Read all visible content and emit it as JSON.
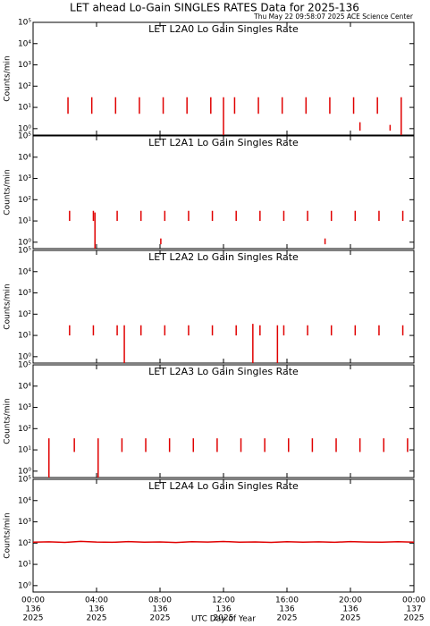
{
  "title": "LET ahead Lo-Gain SINGLES RATES Data for 2025-136",
  "subtitle": "Thu May 22 09:58:07 2025 ACE Science Center",
  "xlabel": "UTC Day of Year",
  "chart_data": [
    {
      "type": "range",
      "title": "LET L2A0 Lo Gain Singles Rate",
      "ylabel": "Counts/min",
      "title_color": "#0000d0",
      "color": "#e00000",
      "log_y": true,
      "x": [
        2.2,
        3.7,
        5.2,
        6.7,
        8.2,
        9.7,
        11.2,
        12.0,
        12.7,
        14.2,
        15.7,
        17.2,
        18.7,
        20.2,
        20.6,
        21.7,
        22.5,
        23.2
      ],
      "low": [
        5,
        5,
        5,
        5,
        5,
        5,
        5,
        0.5,
        5,
        5,
        5,
        5,
        5,
        5,
        0.8,
        5,
        0.8,
        0.5
      ],
      "high": [
        30,
        30,
        30,
        30,
        30,
        30,
        30,
        30,
        30,
        30,
        30,
        30,
        30,
        30,
        2,
        30,
        1.5,
        30
      ],
      "xlim": [
        0,
        24
      ],
      "xticks": [
        0,
        4,
        8,
        12,
        16,
        20,
        24
      ],
      "ylim": [
        0.5,
        100000
      ],
      "yticks": [
        {
          "value": 1,
          "label": "10⁰"
        },
        {
          "value": 10,
          "label": "10¹"
        },
        {
          "value": 100,
          "label": "10²"
        },
        {
          "value": 1000,
          "label": "10³"
        },
        {
          "value": 10000,
          "label": "10⁴"
        },
        {
          "value": 100000,
          "label": "10⁵"
        }
      ]
    },
    {
      "type": "range",
      "title": "LET L2A1 Lo Gain Singles Rate",
      "ylabel": "Counts/min",
      "title_color": "#0000d0",
      "color": "#e00000",
      "log_y": true,
      "x": [
        2.3,
        3.8,
        3.9,
        5.3,
        6.8,
        8.05,
        8.3,
        9.8,
        11.3,
        12.8,
        14.3,
        15.8,
        17.3,
        18.4,
        18.8,
        20.3,
        21.8,
        23.3
      ],
      "low": [
        10,
        10,
        0.5,
        10,
        10,
        0.8,
        10,
        10,
        10,
        10,
        10,
        10,
        10,
        0.8,
        10,
        10,
        10,
        10
      ],
      "high": [
        30,
        30,
        25,
        30,
        30,
        1.5,
        30,
        30,
        30,
        30,
        30,
        30,
        30,
        1.5,
        30,
        30,
        30,
        30
      ],
      "xlim": [
        0,
        24
      ],
      "xticks": [
        0,
        4,
        8,
        12,
        16,
        20,
        24
      ],
      "ylim": [
        0.5,
        100000
      ],
      "yticks": [
        {
          "value": 1,
          "label": "10⁰"
        },
        {
          "value": 10,
          "label": "10¹"
        },
        {
          "value": 100,
          "label": "10²"
        },
        {
          "value": 1000,
          "label": "10³"
        },
        {
          "value": 10000,
          "label": "10⁴"
        },
        {
          "value": 100000,
          "label": "10⁵"
        }
      ]
    },
    {
      "type": "range",
      "title": "LET L2A2 Lo Gain Singles Rate",
      "ylabel": "Counts/min",
      "title_color": "#0000d0",
      "color": "#e00000",
      "log_y": true,
      "x": [
        2.3,
        3.8,
        5.3,
        5.75,
        6.8,
        8.3,
        9.8,
        11.3,
        12.8,
        13.85,
        14.3,
        15.4,
        15.8,
        17.3,
        18.8,
        20.3,
        21.8,
        23.3
      ],
      "low": [
        10,
        10,
        10,
        0.5,
        10,
        10,
        10,
        10,
        10,
        0.5,
        10,
        0.5,
        10,
        10,
        10,
        10,
        10,
        10
      ],
      "high": [
        30,
        30,
        30,
        30,
        30,
        30,
        30,
        30,
        30,
        35,
        30,
        30,
        30,
        30,
        30,
        30,
        30,
        30
      ],
      "xlim": [
        0,
        24
      ],
      "xticks": [
        0,
        4,
        8,
        12,
        16,
        20,
        24
      ],
      "ylim": [
        0.5,
        100000
      ],
      "yticks": [
        {
          "value": 1,
          "label": "10⁰"
        },
        {
          "value": 10,
          "label": "10¹"
        },
        {
          "value": 100,
          "label": "10²"
        },
        {
          "value": 1000,
          "label": "10³"
        },
        {
          "value": 10000,
          "label": "10⁴"
        },
        {
          "value": 100000,
          "label": "10⁵"
        }
      ]
    },
    {
      "type": "range",
      "title": "LET L2A3 Lo Gain Singles Rate",
      "ylabel": "Counts/min",
      "title_color": "#0000d0",
      "color": "#e00000",
      "log_y": true,
      "x": [
        1.0,
        2.6,
        4.1,
        5.6,
        7.1,
        8.6,
        10.1,
        11.6,
        13.1,
        14.6,
        16.1,
        17.6,
        19.1,
        20.6,
        22.1,
        23.6
      ],
      "low": [
        0.5,
        8,
        0.5,
        8,
        8,
        8,
        8,
        8,
        8,
        8,
        8,
        8,
        8,
        8,
        8,
        8
      ],
      "high": [
        35,
        35,
        35,
        35,
        35,
        35,
        35,
        35,
        35,
        35,
        35,
        35,
        35,
        35,
        35,
        35
      ],
      "xlim": [
        0,
        24
      ],
      "xticks": [
        0,
        4,
        8,
        12,
        16,
        20,
        24
      ],
      "ylim": [
        0.5,
        100000
      ],
      "yticks": [
        {
          "value": 1,
          "label": "10⁰"
        },
        {
          "value": 10,
          "label": "10¹"
        },
        {
          "value": 100,
          "label": "10²"
        },
        {
          "value": 1000,
          "label": "10³"
        },
        {
          "value": 10000,
          "label": "10⁴"
        },
        {
          "value": 100000,
          "label": "10⁵"
        }
      ]
    },
    {
      "type": "line",
      "title": "LET L2A4 Lo Gain Singles Rate",
      "ylabel": "Counts/min",
      "title_color": "#0000d0",
      "color": "#e00000",
      "log_y": true,
      "x": [
        0,
        1,
        2,
        3,
        4,
        5,
        6,
        7,
        8,
        9,
        10,
        11,
        12,
        13,
        14,
        15,
        16,
        17,
        18,
        19,
        20,
        21,
        22,
        23,
        24
      ],
      "values": [
        110,
        115,
        108,
        120,
        112,
        109,
        118,
        111,
        114,
        107,
        116,
        112,
        119,
        110,
        113,
        108,
        117,
        111,
        115,
        109,
        118,
        112,
        110,
        116,
        111
      ],
      "xlim": [
        0,
        24
      ],
      "xticks": [
        0,
        4,
        8,
        12,
        16,
        20,
        24
      ],
      "xtick_labels": [
        [
          "00:00",
          "136",
          "2025"
        ],
        [
          "04:00",
          "136",
          "2025"
        ],
        [
          "08:00",
          "136",
          "2025"
        ],
        [
          "12:00",
          "136",
          "2025"
        ],
        [
          "16:00",
          "136",
          "2025"
        ],
        [
          "20:00",
          "136",
          "2025"
        ],
        [
          "00:00",
          "137",
          "2025"
        ]
      ],
      "ylim": [
        0.5,
        100000
      ],
      "yticks": [
        {
          "value": 1,
          "label": "10⁰"
        },
        {
          "value": 10,
          "label": "10¹"
        },
        {
          "value": 100,
          "label": "10²"
        },
        {
          "value": 1000,
          "label": "10³"
        },
        {
          "value": 10000,
          "label": "10⁴"
        },
        {
          "value": 100000,
          "label": "10⁵"
        }
      ]
    }
  ]
}
